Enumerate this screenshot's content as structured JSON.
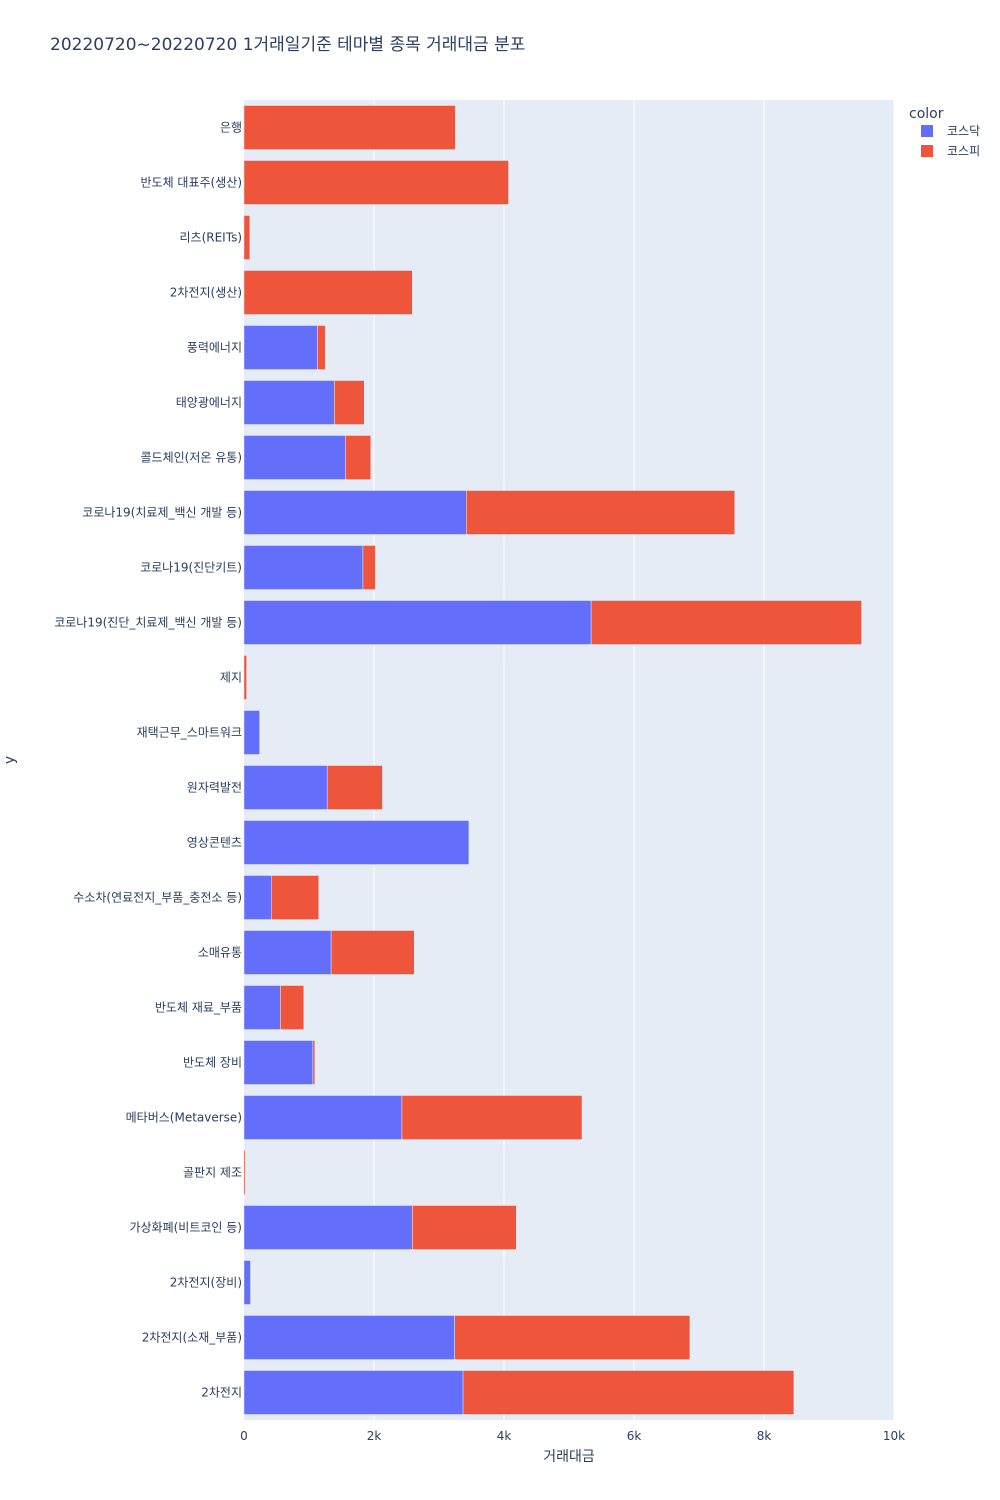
{
  "chart_data": {
    "type": "bar",
    "orientation": "horizontal",
    "barmode": "stack",
    "title": "20220720~20220720 1거래일기준 테마별 종목 거래대금 분포",
    "xlabel": "거래대금",
    "ylabel": "y",
    "xlim": [
      0,
      10000
    ],
    "x_ticks": [
      0,
      2000,
      4000,
      6000,
      8000,
      10000
    ],
    "x_tick_labels": [
      "0",
      "2k",
      "4k",
      "6k",
      "8k",
      "10k"
    ],
    "grid": true,
    "legend_title": "color",
    "legend_position": "top-right",
    "categories": [
      "2차전지",
      "2차전지(소재_부품)",
      "2차전지(장비)",
      "가상화폐(비트코인 등)",
      "골판지 제조",
      "메타버스(Metaverse)",
      "반도체 장비",
      "반도체 재료_부품",
      "소매유통",
      "수소차(연료전지_부품_충전소 등)",
      "영상콘텐츠",
      "원자력발전",
      "재택근무_스마트워크",
      "제지",
      "코로나19(진단_치료제_백신 개발 등)",
      "코로나19(진단키트)",
      "코로나19(치료제_백신 개발 등)",
      "콜드체인(저온 유통)",
      "태양광에너지",
      "풍력에너지",
      "2차전지(생산)",
      "리츠(REITs)",
      "반도체 대표주(생산)",
      "은행"
    ],
    "series": [
      {
        "name": "코스닥",
        "color": "#636efa",
        "values": [
          3370,
          3240,
          100,
          2590,
          0,
          2430,
          1060,
          560,
          1340,
          420,
          3460,
          1280,
          240,
          0,
          5340,
          1830,
          3420,
          1560,
          1390,
          1130,
          0,
          0,
          0,
          0
        ]
      },
      {
        "name": "코스피",
        "color": "#ef553b",
        "values": [
          5090,
          3620,
          0,
          1600,
          20,
          2770,
          30,
          360,
          1280,
          730,
          0,
          850,
          0,
          40,
          4160,
          190,
          4130,
          390,
          460,
          120,
          2590,
          90,
          4070,
          3250
        ]
      }
    ]
  }
}
